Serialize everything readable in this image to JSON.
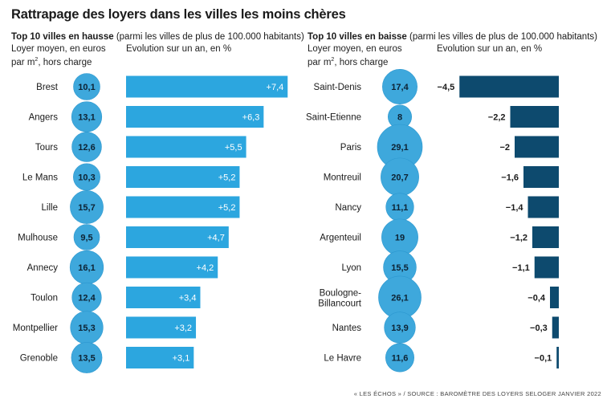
{
  "title": "Rattrapage des loyers dans les villes les moins chères",
  "source": "« LES ÉCHOS » / SOURCE : BAROMÈTRE DES LOYERS SELOGER JANVIER 2022",
  "colors": {
    "bubble": "#3ea8dc",
    "bubble_edge": "#2b97cf",
    "rise_bar": "#2ca6df",
    "fall_bar": "#0d4a6e"
  },
  "chart_data": [
    {
      "type": "bar",
      "title_bold": "Top 10 villes en hausse",
      "title_rest": "(parmi les villes de plus de 100.000 habitants)",
      "rent_label_line1": "Loyer moyen, en euros",
      "rent_label_line2a": "par m",
      "rent_label_sup": "2",
      "rent_label_line2b": ", hors charge",
      "evolution_label": "Evolution sur un an, en %",
      "categories": [
        "Brest",
        "Angers",
        "Tours",
        "Le Mans",
        "Lille",
        "Mulhouse",
        "Annecy",
        "Toulon",
        "Montpellier",
        "Grenoble"
      ],
      "rent_values": [
        10.1,
        13.1,
        12.6,
        10.3,
        15.7,
        9.5,
        16.1,
        12.4,
        15.3,
        13.5
      ],
      "rent_labels": [
        "10,1",
        "13,1",
        "12,6",
        "10,3",
        "15,7",
        "9,5",
        "16,1",
        "12,4",
        "15,3",
        "13,5"
      ],
      "evolution_values": [
        7.4,
        6.3,
        5.5,
        5.2,
        5.2,
        4.7,
        4.2,
        3.4,
        3.2,
        3.1
      ],
      "evolution_labels": [
        "+7,4",
        "+6,3",
        "+5,5",
        "+5,2",
        "+5,2",
        "+4,7",
        "+4,2",
        "+3,4",
        "+3,2",
        "+3,1"
      ]
    },
    {
      "type": "bar",
      "title_bold": "Top 10 villes en baisse",
      "title_rest": "(parmi les villes de plus de 100.000 habitants)",
      "rent_label_line1": "Loyer moyen, en euros",
      "rent_label_line2a": "par m",
      "rent_label_sup": "2",
      "rent_label_line2b": ", hors charge",
      "evolution_label": "Evolution sur un an, en %",
      "categories": [
        "Saint-Denis",
        "Saint-Etienne",
        "Paris",
        "Montreuil",
        "Nancy",
        "Argenteuil",
        "Lyon",
        "Boulogne-|Billancourt",
        "Nantes",
        "Le Havre"
      ],
      "rent_values": [
        17.4,
        8,
        29.1,
        20.7,
        11.1,
        19,
        15.5,
        26.1,
        13.9,
        11.6
      ],
      "rent_labels": [
        "17,4",
        "8",
        "29,1",
        "20,7",
        "11,1",
        "19",
        "15,5",
        "26,1",
        "13,9",
        "11,6"
      ],
      "evolution_values": [
        -4.5,
        -2.2,
        -2,
        -1.6,
        -1.4,
        -1.2,
        -1.1,
        -0.4,
        -0.3,
        -0.1
      ],
      "evolution_labels": [
        "−4,5",
        "−2,2",
        "−2",
        "−1,6",
        "−1,4",
        "−1,2",
        "−1,1",
        "−0,4",
        "−0,3",
        "−0,1"
      ]
    }
  ]
}
